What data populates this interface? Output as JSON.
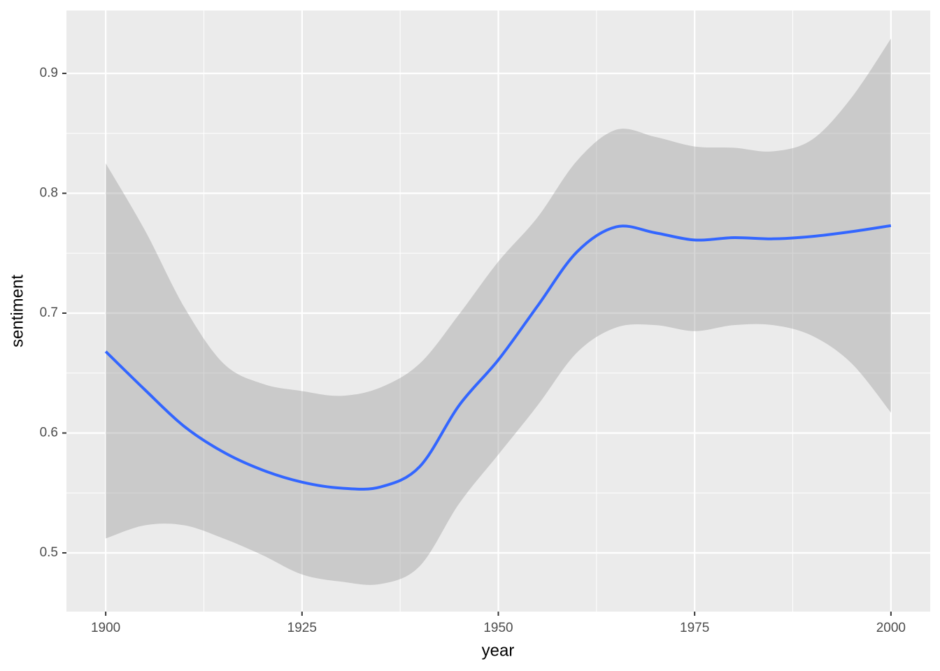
{
  "chart_data": {
    "type": "line",
    "x_label": "year",
    "y_label": "sentiment",
    "x": [
      1900,
      1905,
      1910,
      1915,
      1920,
      1925,
      1930,
      1935,
      1940,
      1945,
      1950,
      1955,
      1960,
      1965,
      1970,
      1975,
      1980,
      1985,
      1990,
      1995,
      2000
    ],
    "series": [
      {
        "color": "#3366ff",
        "band_color": "#999999",
        "values": [
          0.668,
          0.636,
          0.6055,
          0.584,
          0.569,
          0.559,
          0.554,
          0.555,
          0.572,
          0.623,
          0.661,
          0.706,
          0.751,
          0.772,
          0.767,
          0.761,
          0.763,
          0.762,
          0.764,
          0.768,
          0.773
        ],
        "upper": [
          0.825,
          0.769,
          0.705,
          0.658,
          0.641,
          0.635,
          0.631,
          0.638,
          0.658,
          0.699,
          0.743,
          0.78,
          0.827,
          0.853,
          0.847,
          0.839,
          0.838,
          0.835,
          0.845,
          0.88,
          0.929
        ],
        "lower": [
          0.512,
          0.523,
          0.523,
          0.512,
          0.498,
          0.482,
          0.476,
          0.474,
          0.489,
          0.541,
          0.582,
          0.623,
          0.667,
          0.688,
          0.69,
          0.685,
          0.69,
          0.69,
          0.681,
          0.658,
          0.617
        ]
      }
    ],
    "xlim": [
      1895,
      2005
    ],
    "xticks": [
      1900,
      1925,
      1950,
      1975,
      2000
    ],
    "xminor": [
      1912.5,
      1937.5,
      1962.5,
      1987.5
    ],
    "ylim": [
      0.451,
      0.9525
    ],
    "yticks": [
      0.5,
      0.6,
      0.7,
      0.8,
      0.9
    ],
    "yminor": [
      0.55,
      0.65,
      0.75,
      0.85
    ],
    "grid": true
  }
}
